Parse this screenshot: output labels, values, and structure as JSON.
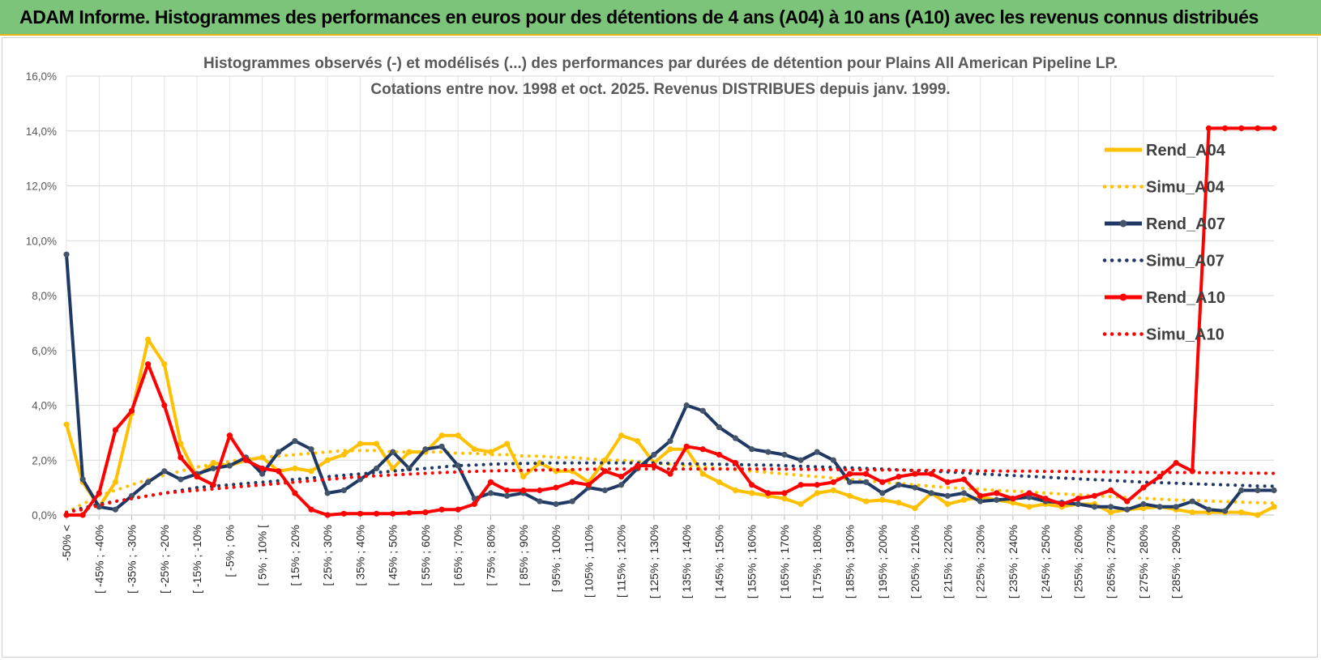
{
  "banner": {
    "title": "ADAM Informe. Histogrammes des performances en euros pour des détentions de 4 ans (A04) à 10 ans (A10) avec les revenus connus distribués"
  },
  "chart_data": {
    "type": "line",
    "title": "Histogrammes observés (-) et modélisés (...) des performances par durées de détention pour Plains All American Pipeline LP.",
    "subtitle": "Cotations entre nov. 1998 et oct. 2025. Revenus DISTRIBUES depuis janv. 1999.",
    "ylim": [
      0,
      16
    ],
    "yticks": [
      "0,0%",
      "2,0%",
      "4,0%",
      "6,0%",
      "8,0%",
      "10,0%",
      "12,0%",
      "14,0%",
      "16,0%"
    ],
    "x_labels": [
      "-50% <",
      "[ -45% ; -40%",
      "[ -35% ; -30%",
      "[ -25% ; -20%",
      "[ -15% ; -10%",
      "[ -5% ; 0%",
      "[ 5% ; 10% [",
      "[ 15% ; 20%",
      "[ 25% ; 30%",
      "[ 35% ; 40%",
      "[ 45% ; 50%",
      "[ 55% ; 60%",
      "[ 65% ; 70%",
      "[ 75% ; 80%",
      "[ 85% ; 90%",
      "[ 95% ; 100%",
      "[ 105% ; 110%",
      "[ 115% ; 120%",
      "[ 125% ; 130%",
      "[ 135% ; 140%",
      "[ 145% ; 150%",
      "[ 155% ; 160%",
      "[ 165% ; 170%",
      "[ 175% ; 180%",
      "[ 185% ; 190%",
      "[ 195% ; 200%",
      "[ 205% ; 210%",
      "[ 215% ; 220%",
      "[ 225% ; 230%",
      "[ 235% ; 240%",
      "[ 245% ; 250%",
      "[ 255% ; 260%",
      "[ 265% ; 270%",
      "[ 275% ; 280%",
      "[ 285% ; 290%"
    ],
    "series": [
      {
        "name": "Rend_A04",
        "style": "solid",
        "color": "#ffc000",
        "values": [
          3.3,
          1.2,
          0.3,
          1.2,
          3.7,
          6.4,
          5.5,
          2.6,
          1.4,
          1.9,
          1.8,
          2.0,
          2.1,
          1.6,
          1.7,
          1.6,
          2.0,
          2.2,
          2.6,
          2.6,
          1.7,
          2.3,
          2.3,
          2.9,
          2.9,
          2.4,
          2.3,
          2.6,
          1.4,
          1.9,
          1.6,
          1.6,
          1.2,
          2.0,
          2.9,
          2.7,
          1.9,
          2.4,
          2.4,
          1.5,
          1.2,
          0.9,
          0.8,
          0.7,
          0.6,
          0.4,
          0.8,
          0.9,
          0.7,
          0.5,
          0.55,
          0.45,
          0.25,
          0.8,
          0.4,
          0.55,
          0.65,
          0.55,
          0.45,
          0.3,
          0.4,
          0.3,
          0.4,
          0.4,
          0.1,
          0.2,
          0.25,
          0.3,
          0.2,
          0.1,
          0.1,
          0.1,
          0.1,
          0.0,
          0.3
        ]
      },
      {
        "name": "Simu_A04",
        "style": "dotted",
        "color": "#ffc000",
        "values": [
          0.1,
          0.4,
          0.7,
          0.9,
          1.1,
          1.3,
          1.45,
          1.6,
          1.75,
          1.85,
          1.95,
          2.05,
          2.1,
          2.15,
          2.2,
          2.25,
          2.3,
          2.35,
          2.35,
          2.35,
          2.3,
          2.3,
          2.3,
          2.3,
          2.25,
          2.25,
          2.2,
          2.2,
          2.15,
          2.15,
          2.1,
          2.1,
          2.05,
          2.0,
          2.0,
          1.95,
          1.9,
          1.85,
          1.8,
          1.75,
          1.7,
          1.65,
          1.6,
          1.55,
          1.5,
          1.45,
          1.4,
          1.35,
          1.3,
          1.25,
          1.2,
          1.15,
          1.1,
          1.05,
          1.0,
          0.97,
          0.94,
          0.9,
          0.87,
          0.84,
          0.8,
          0.77,
          0.74,
          0.7,
          0.67,
          0.64,
          0.61,
          0.58,
          0.55,
          0.53,
          0.51,
          0.49,
          0.47,
          0.45,
          0.44
        ]
      },
      {
        "name": "Rend_A07",
        "style": "solid-marker",
        "color": "#1f3864",
        "values": [
          9.5,
          1.3,
          0.3,
          0.2,
          0.7,
          1.2,
          1.6,
          1.3,
          1.5,
          1.7,
          1.8,
          2.1,
          1.5,
          2.3,
          2.7,
          2.4,
          0.8,
          0.9,
          1.3,
          1.7,
          2.3,
          1.7,
          2.4,
          2.5,
          1.8,
          0.6,
          0.8,
          0.7,
          0.8,
          0.5,
          0.4,
          0.5,
          1.0,
          0.9,
          1.1,
          1.7,
          2.2,
          2.7,
          4.0,
          3.8,
          3.2,
          2.8,
          2.4,
          2.3,
          2.2,
          2.0,
          2.3,
          2.0,
          1.2,
          1.2,
          0.8,
          1.1,
          1.0,
          0.8,
          0.7,
          0.8,
          0.5,
          0.55,
          0.6,
          0.65,
          0.5,
          0.45,
          0.4,
          0.3,
          0.3,
          0.2,
          0.4,
          0.3,
          0.3,
          0.5,
          0.2,
          0.15,
          0.9,
          0.9,
          0.9
        ]
      },
      {
        "name": "Simu_A07",
        "style": "dotted",
        "color": "#1f3864",
        "values": [
          0.1,
          0.25,
          0.4,
          0.5,
          0.6,
          0.7,
          0.8,
          0.9,
          1.0,
          1.05,
          1.1,
          1.15,
          1.2,
          1.25,
          1.3,
          1.35,
          1.4,
          1.45,
          1.5,
          1.55,
          1.6,
          1.65,
          1.7,
          1.75,
          1.8,
          1.82,
          1.85,
          1.87,
          1.88,
          1.89,
          1.9,
          1.9,
          1.9,
          1.9,
          1.9,
          1.9,
          1.9,
          1.88,
          1.87,
          1.86,
          1.85,
          1.84,
          1.83,
          1.82,
          1.8,
          1.78,
          1.76,
          1.74,
          1.72,
          1.7,
          1.68,
          1.65,
          1.62,
          1.6,
          1.57,
          1.54,
          1.5,
          1.47,
          1.44,
          1.41,
          1.38,
          1.35,
          1.32,
          1.29,
          1.26,
          1.23,
          1.2,
          1.18,
          1.16,
          1.14,
          1.12,
          1.1,
          1.08,
          1.06,
          1.05
        ]
      },
      {
        "name": "Rend_A10",
        "style": "solid-marker",
        "color": "#ff0000",
        "values": [
          0.0,
          0.0,
          0.8,
          3.1,
          3.8,
          5.5,
          4.0,
          2.1,
          1.4,
          1.1,
          2.9,
          2.0,
          1.7,
          1.6,
          0.8,
          0.2,
          0.0,
          0.05,
          0.05,
          0.05,
          0.05,
          0.08,
          0.1,
          0.2,
          0.2,
          0.4,
          1.2,
          0.9,
          0.9,
          0.9,
          1.0,
          1.2,
          1.1,
          1.6,
          1.4,
          1.8,
          1.8,
          1.5,
          2.5,
          2.4,
          2.2,
          1.9,
          1.1,
          0.8,
          0.8,
          1.1,
          1.1,
          1.2,
          1.5,
          1.5,
          1.2,
          1.4,
          1.5,
          1.5,
          1.2,
          1.3,
          0.7,
          0.8,
          0.6,
          0.8,
          0.6,
          0.4,
          0.6,
          0.7,
          0.9,
          0.5,
          1.0,
          1.4,
          1.9,
          1.6,
          14.1,
          14.1,
          14.1,
          14.1,
          14.1
        ]
      },
      {
        "name": "Simu_A10",
        "style": "dotted",
        "color": "#ff0000",
        "values": [
          0.1,
          0.2,
          0.35,
          0.5,
          0.6,
          0.7,
          0.8,
          0.85,
          0.9,
          0.95,
          1.0,
          1.05,
          1.1,
          1.15,
          1.2,
          1.25,
          1.3,
          1.35,
          1.4,
          1.43,
          1.46,
          1.49,
          1.52,
          1.55,
          1.57,
          1.59,
          1.61,
          1.62,
          1.63,
          1.64,
          1.65,
          1.66,
          1.67,
          1.68,
          1.68,
          1.68,
          1.68,
          1.68,
          1.68,
          1.68,
          1.68,
          1.68,
          1.68,
          1.68,
          1.67,
          1.67,
          1.66,
          1.66,
          1.65,
          1.65,
          1.64,
          1.64,
          1.63,
          1.63,
          1.62,
          1.62,
          1.61,
          1.61,
          1.6,
          1.6,
          1.59,
          1.59,
          1.58,
          1.58,
          1.57,
          1.57,
          1.56,
          1.56,
          1.55,
          1.55,
          1.54,
          1.54,
          1.53,
          1.53,
          1.52
        ]
      }
    ],
    "legend": [
      "Rend_A04",
      "Simu_A04",
      "Rend_A07",
      "Simu_A07",
      "Rend_A10",
      "Simu_A10"
    ],
    "legend_position": "right"
  }
}
